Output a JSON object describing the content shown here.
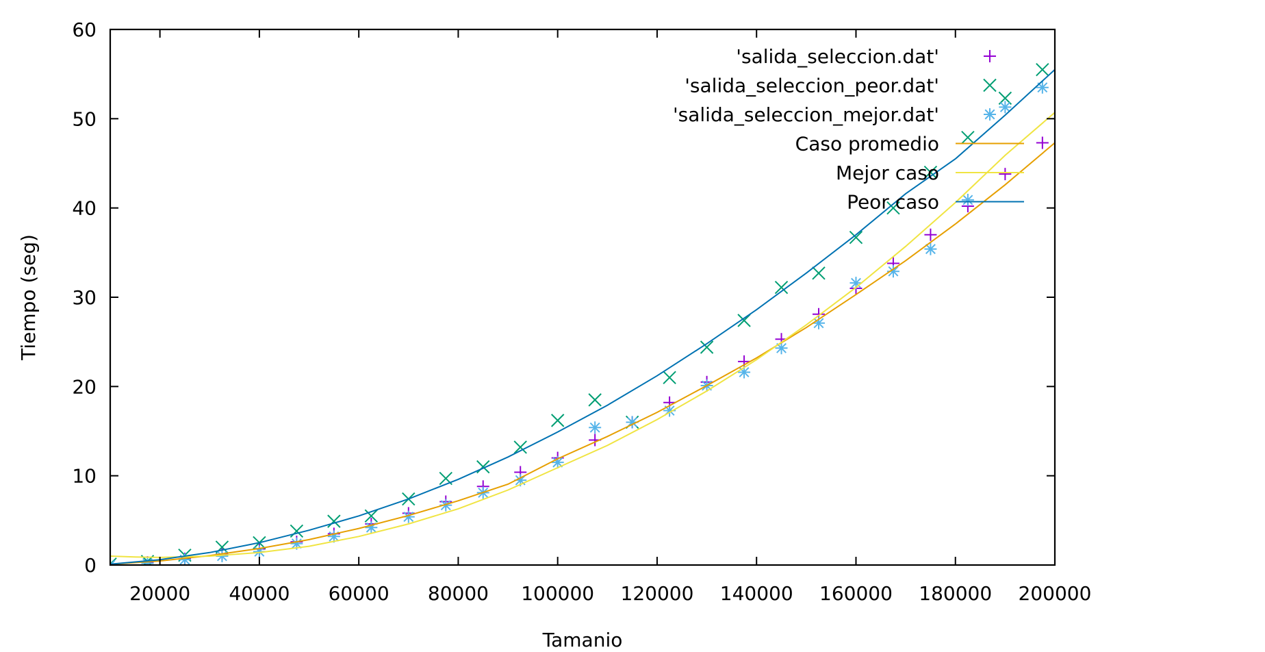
{
  "chart_data": {
    "type": "scatter",
    "xlabel": "Tamanio",
    "ylabel": "Tiempo (seg)",
    "xlim": [
      10000,
      200000
    ],
    "ylim": [
      0,
      60
    ],
    "xticks": [
      20000,
      40000,
      60000,
      80000,
      100000,
      120000,
      140000,
      160000,
      180000,
      200000
    ],
    "yticks": [
      0,
      10,
      20,
      30,
      40,
      50,
      60
    ],
    "grid": false,
    "legend_position": "top-right",
    "series": [
      {
        "name": "'salida_seleccion.dat'",
        "kind": "points",
        "marker": "plus",
        "color": "#9400d3",
        "x": [
          10000,
          17500,
          25000,
          32500,
          40000,
          47500,
          55000,
          62500,
          70000,
          77500,
          85000,
          92500,
          100000,
          107500,
          115000,
          122500,
          130000,
          137500,
          145000,
          152500,
          160000,
          167500,
          175000,
          182500,
          190000,
          197500
        ],
        "y": [
          0.1,
          0.3,
          0.7,
          1.2,
          1.8,
          2.6,
          3.5,
          4.6,
          5.8,
          7.1,
          8.8,
          10.4,
          12.0,
          14.0,
          16.0,
          18.2,
          20.5,
          22.8,
          25.3,
          28.1,
          31.0,
          33.8,
          37.0,
          40.2,
          43.8,
          47.3
        ]
      },
      {
        "name": "'salida_seleccion_peor.dat'",
        "kind": "points",
        "marker": "cross",
        "color": "#009e73",
        "x": [
          10000,
          17500,
          25000,
          32500,
          40000,
          47500,
          55000,
          62500,
          70000,
          77500,
          85000,
          92500,
          100000,
          107500,
          115000,
          122500,
          130000,
          137500,
          145000,
          152500,
          160000,
          167500,
          175000,
          182500,
          190000,
          197500
        ],
        "y": [
          0.1,
          0.4,
          1.1,
          2.0,
          2.5,
          3.8,
          4.9,
          5.5,
          7.4,
          9.7,
          11.0,
          13.2,
          16.2,
          18.5,
          16.0,
          21.0,
          24.4,
          27.4,
          31.1,
          32.7,
          36.7,
          40.0,
          44.0,
          47.9,
          52.3,
          55.5
        ]
      },
      {
        "name": "'salida_seleccion_mejor.dat'",
        "kind": "points",
        "marker": "star",
        "color": "#56b4e9",
        "x": [
          10000,
          17500,
          25000,
          32500,
          40000,
          47500,
          55000,
          62500,
          70000,
          77500,
          85000,
          92500,
          100000,
          107500,
          115000,
          122500,
          130000,
          137500,
          145000,
          152500,
          160000,
          167500,
          175000,
          182500,
          190000,
          197500
        ],
        "y": [
          0.0,
          0.2,
          0.6,
          1.0,
          1.5,
          2.4,
          3.2,
          4.2,
          5.4,
          6.7,
          8.1,
          9.5,
          11.5,
          15.4,
          16.0,
          17.3,
          20.1,
          21.6,
          24.3,
          27.1,
          31.6,
          32.9,
          35.4,
          40.9,
          51.3,
          53.5
        ]
      },
      {
        "name": "Caso promedio",
        "kind": "line",
        "color": "#e69f00",
        "x": [
          10000,
          20000,
          30000,
          40000,
          50000,
          60000,
          70000,
          80000,
          90000,
          100000,
          110000,
          120000,
          130000,
          140000,
          150000,
          160000,
          170000,
          180000,
          190000,
          200000
        ],
        "y": [
          0.1,
          0.45,
          1.05,
          1.85,
          2.85,
          4.1,
          5.55,
          7.2,
          9.05,
          11.9,
          14.4,
          17.1,
          20.1,
          23.2,
          26.6,
          30.3,
          34.1,
          38.2,
          42.6,
          47.3
        ]
      },
      {
        "name": "Mejor caso",
        "kind": "line",
        "color": "#f0e442",
        "x": [
          10000,
          15000,
          20000,
          30000,
          40000,
          50000,
          60000,
          70000,
          80000,
          90000,
          100000,
          110000,
          120000,
          130000,
          140000,
          150000,
          160000,
          170000,
          180000,
          190000,
          200000
        ],
        "y": [
          1.0,
          0.9,
          0.85,
          1.0,
          1.4,
          2.1,
          3.2,
          4.6,
          6.3,
          8.4,
          10.9,
          13.4,
          16.3,
          19.5,
          23.0,
          26.9,
          31.1,
          35.7,
          40.6,
          45.9,
          50.7
        ]
      },
      {
        "name": "Peor caso",
        "kind": "line",
        "color": "#0072b2",
        "x": [
          10000,
          20000,
          30000,
          40000,
          50000,
          60000,
          70000,
          80000,
          90000,
          100000,
          110000,
          120000,
          130000,
          140000,
          150000,
          160000,
          170000,
          180000,
          190000,
          200000
        ],
        "y": [
          0.1,
          0.6,
          1.4,
          2.5,
          3.9,
          5.5,
          7.4,
          9.6,
          12.1,
          14.9,
          17.9,
          21.2,
          24.8,
          28.6,
          32.7,
          37.0,
          41.6,
          45.5,
          50.4,
          55.5
        ]
      }
    ]
  }
}
